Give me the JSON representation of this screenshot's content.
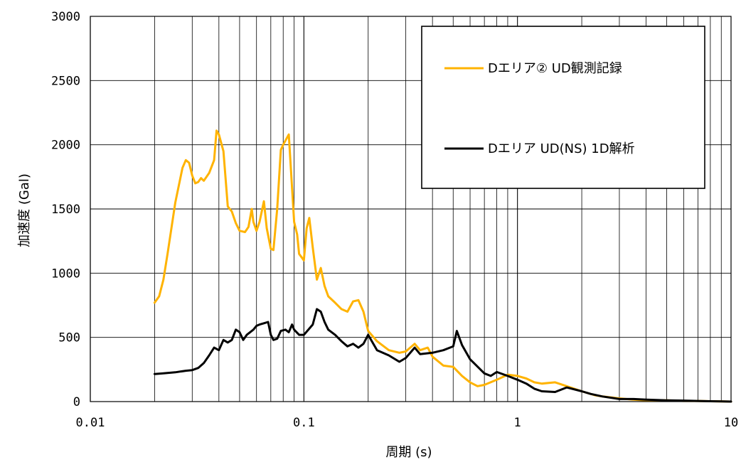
{
  "chart_data": {
    "type": "line",
    "xlabel": "周期 (s)",
    "ylabel": "加速度 (Gal)",
    "xscale": "log",
    "xlim": [
      0.01,
      10
    ],
    "ylim": [
      0,
      3000
    ],
    "x_tick_labels": [
      "0.01",
      "0.1",
      "1",
      "10"
    ],
    "y_tick_labels": [
      "0",
      "500",
      "1000",
      "1500",
      "2000",
      "2500",
      "3000"
    ],
    "grid": true,
    "legend_position": "top-right",
    "series": [
      {
        "name": "Dエリア② UD観測記録",
        "color": "#FFB300",
        "x": [
          0.02,
          0.021,
          0.022,
          0.023,
          0.025,
          0.027,
          0.028,
          0.029,
          0.03,
          0.031,
          0.032,
          0.033,
          0.034,
          0.036,
          0.038,
          0.039,
          0.04,
          0.042,
          0.044,
          0.046,
          0.048,
          0.05,
          0.053,
          0.055,
          0.057,
          0.058,
          0.06,
          0.062,
          0.065,
          0.067,
          0.07,
          0.072,
          0.075,
          0.078,
          0.08,
          0.085,
          0.087,
          0.09,
          0.093,
          0.095,
          0.1,
          0.103,
          0.106,
          0.11,
          0.115,
          0.12,
          0.125,
          0.13,
          0.14,
          0.15,
          0.16,
          0.17,
          0.18,
          0.19,
          0.2,
          0.22,
          0.25,
          0.28,
          0.3,
          0.33,
          0.35,
          0.38,
          0.4,
          0.45,
          0.5,
          0.55,
          0.6,
          0.65,
          0.7,
          0.8,
          0.9,
          1.0,
          1.1,
          1.2,
          1.3,
          1.5,
          1.7,
          2.0,
          2.3,
          2.5,
          3.0,
          3.5,
          4.0,
          5.0,
          6.0,
          7.0,
          8.0,
          10.0
        ],
        "y": [
          770,
          820,
          950,
          1150,
          1550,
          1820,
          1880,
          1860,
          1760,
          1700,
          1710,
          1740,
          1720,
          1780,
          1880,
          2110,
          2080,
          1950,
          1520,
          1480,
          1390,
          1330,
          1320,
          1360,
          1500,
          1400,
          1330,
          1400,
          1560,
          1350,
          1190,
          1180,
          1500,
          1960,
          2000,
          2080,
          1800,
          1400,
          1300,
          1150,
          1100,
          1350,
          1430,
          1200,
          950,
          1040,
          900,
          820,
          770,
          720,
          700,
          780,
          790,
          700,
          550,
          470,
          400,
          380,
          390,
          450,
          400,
          420,
          350,
          280,
          270,
          200,
          150,
          120,
          130,
          170,
          210,
          200,
          180,
          150,
          140,
          150,
          120,
          80,
          50,
          40,
          25,
          15,
          10,
          10,
          5,
          5,
          3,
          0
        ]
      },
      {
        "name": "Dエリア UD(NS) 1D解析",
        "color": "#000000",
        "x": [
          0.02,
          0.022,
          0.025,
          0.028,
          0.03,
          0.032,
          0.034,
          0.036,
          0.038,
          0.04,
          0.042,
          0.044,
          0.046,
          0.048,
          0.05,
          0.052,
          0.054,
          0.056,
          0.058,
          0.06,
          0.062,
          0.065,
          0.068,
          0.07,
          0.072,
          0.075,
          0.078,
          0.082,
          0.085,
          0.088,
          0.09,
          0.095,
          0.1,
          0.105,
          0.11,
          0.115,
          0.12,
          0.125,
          0.13,
          0.14,
          0.15,
          0.16,
          0.17,
          0.18,
          0.19,
          0.2,
          0.22,
          0.25,
          0.28,
          0.3,
          0.33,
          0.35,
          0.4,
          0.45,
          0.5,
          0.52,
          0.55,
          0.6,
          0.7,
          0.75,
          0.8,
          0.9,
          1.0,
          1.1,
          1.2,
          1.3,
          1.5,
          1.7,
          2.0,
          2.2,
          2.5,
          3.0,
          3.5,
          4.0,
          5.0,
          6.0,
          7.0,
          8.0,
          10.0
        ],
        "y": [
          215,
          220,
          228,
          240,
          245,
          262,
          300,
          360,
          420,
          400,
          480,
          460,
          480,
          560,
          540,
          480,
          520,
          540,
          560,
          590,
          600,
          610,
          620,
          520,
          480,
          490,
          550,
          560,
          540,
          600,
          560,
          520,
          520,
          560,
          600,
          720,
          700,
          620,
          560,
          520,
          470,
          430,
          450,
          420,
          450,
          520,
          400,
          360,
          310,
          340,
          420,
          370,
          380,
          400,
          430,
          550,
          440,
          330,
          220,
          200,
          230,
          200,
          170,
          140,
          100,
          80,
          75,
          110,
          80,
          60,
          40,
          20,
          20,
          15,
          10,
          8,
          5,
          3,
          0
        ]
      }
    ]
  }
}
